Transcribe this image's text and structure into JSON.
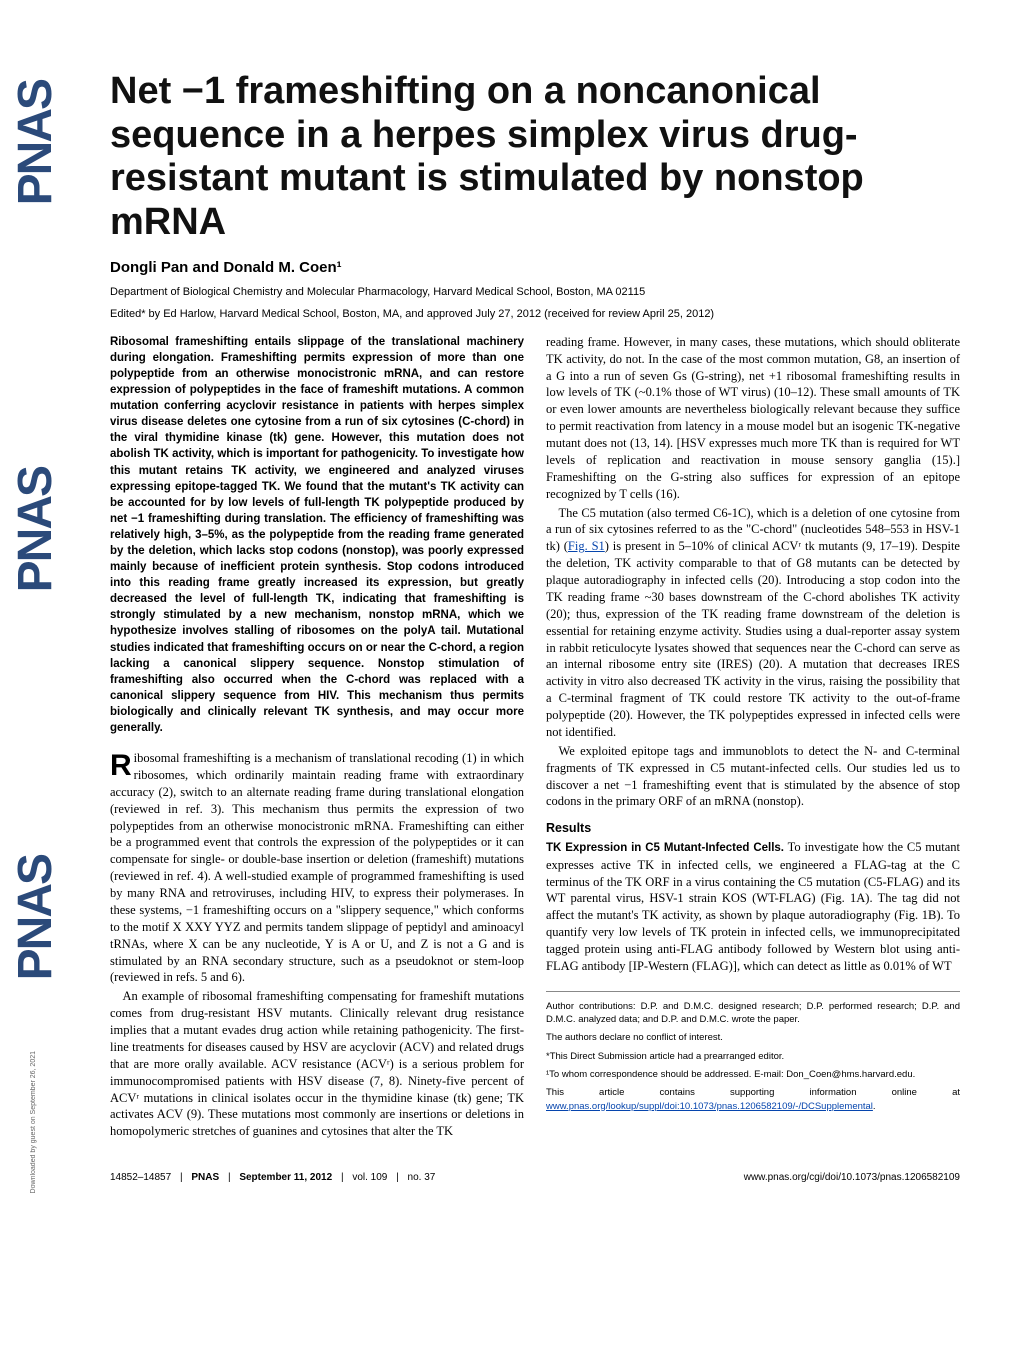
{
  "journal_logo": {
    "text": "PNAS",
    "repeat": 3,
    "color": "#2b4a7a"
  },
  "title": "Net −1 frameshifting on a noncanonical sequence in a herpes simplex virus drug-resistant mutant is stimulated by nonstop mRNA",
  "authors_html": "Dongli Pan and Donald M. Coen¹",
  "affiliation": "Department of Biological Chemistry and Molecular Pharmacology, Harvard Medical School, Boston, MA 02115",
  "editor_line": "Edited* by Ed Harlow, Harvard Medical School, Boston, MA, and approved July 27, 2012 (received for review April 25, 2012)",
  "abstract": "Ribosomal frameshifting entails slippage of the translational machinery during elongation. Frameshifting permits expression of more than one polypeptide from an otherwise monocistronic mRNA, and can restore expression of polypeptides in the face of frameshift mutations. A common mutation conferring acyclovir resistance in patients with herpes simplex virus disease deletes one cytosine from a run of six cytosines (C-chord) in the viral thymidine kinase (tk) gene. However, this mutation does not abolish TK activity, which is important for pathogenicity. To investigate how this mutant retains TK activity, we engineered and analyzed viruses expressing epitope-tagged TK. We found that the mutant's TK activity can be accounted for by low levels of full-length TK polypeptide produced by net −1 frameshifting during translation. The efficiency of frameshifting was relatively high, 3–5%, as the polypeptide from the reading frame generated by the deletion, which lacks stop codons (nonstop), was poorly expressed mainly because of inefficient protein synthesis. Stop codons introduced into this reading frame greatly increased its expression, but greatly decreased the level of full-length TK, indicating that frameshifting is strongly stimulated by a new mechanism, nonstop mRNA, which we hypothesize involves stalling of ribosomes on the polyA tail. Mutational studies indicated that frameshifting occurs on or near the C-chord, a region lacking a canonical slippery sequence. Nonstop stimulation of frameshifting also occurred when the C-chord was replaced with a canonical slippery sequence from HIV. This mechanism thus permits biologically and clinically relevant TK synthesis, and may occur more generally.",
  "body": {
    "p1": "Ribosomal frameshifting is a mechanism of translational recoding (1) in which ribosomes, which ordinarily maintain reading frame with extraordinary accuracy (2), switch to an alternate reading frame during translational elongation (reviewed in ref. 3). This mechanism thus permits the expression of two polypeptides from an otherwise monocistronic mRNA. Frameshifting can either be a programmed event that controls the expression of the polypeptides or it can compensate for single- or double-base insertion or deletion (frameshift) mutations (reviewed in ref. 4). A well-studied example of programmed frameshifting is used by many RNA and retroviruses, including HIV, to express their polymerases. In these systems, −1 frameshifting occurs on a \"slippery sequence,\" which conforms to the motif X XXY YYZ and permits tandem slippage of peptidyl and aminoacyl tRNAs, where X can be any nucleotide, Y is A or U, and Z is not a G and is stimulated by an RNA secondary structure, such as a pseudoknot or stem-loop (reviewed in refs. 5 and 6).",
    "p2": "An example of ribosomal frameshifting compensating for frameshift mutations comes from drug-resistant HSV mutants. Clinically relevant drug resistance implies that a mutant evades drug action while retaining pathogenicity. The first-line treatments for diseases caused by HSV are acyclovir (ACV) and related drugs that are more orally available. ACV resistance (ACVʳ) is a serious problem for immunocompromised patients with HSV disease (7, 8). Ninety-five percent of ACVʳ mutations in clinical isolates occur in the thymidine kinase (tk) gene; TK activates ACV (9). These mutations most commonly are insertions or deletions in homopolymeric stretches of guanines and cytosines that alter the TK",
    "p3": "reading frame. However, in many cases, these mutations, which should obliterate TK activity, do not. In the case of the most common mutation, G8, an insertion of a G into a run of seven Gs (G-string), net +1 ribosomal frameshifting results in low levels of TK (~0.1% those of WT virus) (10–12). These small amounts of TK or even lower amounts are nevertheless biologically relevant because they suffice to permit reactivation from latency in a mouse model but an isogenic TK-negative mutant does not (13, 14). [HSV expresses much more TK than is required for WT levels of replication and reactivation in mouse sensory ganglia (15).] Frameshifting on the G-string also suffices for expression of an epitope recognized by T cells (16).",
    "p4_a": "The C5 mutation (also termed C6-1C), which is a deletion of one cytosine from a run of six cytosines referred to as the \"C-chord\" (nucleotides 548–553 in HSV-1 tk) (",
    "p4_link": "Fig. S1",
    "p4_b": ") is present in 5–10% of clinical ACVʳ tk mutants (9, 17–19). Despite the deletion, TK activity comparable to that of G8 mutants can be detected by plaque autoradiography in infected cells (20). Introducing a stop codon into the TK reading frame ~30 bases downstream of the C-chord abolishes TK activity (20); thus, expression of the TK reading frame downstream of the deletion is essential for retaining enzyme activity. Studies using a dual-reporter assay system in rabbit reticulocyte lysates showed that sequences near the C-chord can serve as an internal ribosome entry site (IRES) (20). A mutation that decreases IRES activity in vitro also decreased TK activity in the virus, raising the possibility that a C-terminal fragment of TK could restore TK activity to the out-of-frame polypeptide (20). However, the TK polypeptides expressed in infected cells were not identified.",
    "p5": "We exploited epitope tags and immunoblots to detect the N- and C-terminal fragments of TK expressed in C5 mutant-infected cells. Our studies led us to discover a net −1 frameshifting event that is stimulated by the absence of stop codons in the primary ORF of an mRNA (nonstop).",
    "results_h": "Results",
    "results_runin": "TK Expression in C5 Mutant-Infected Cells.",
    "results_p": " To investigate how the C5 mutant expresses active TK in infected cells, we engineered a FLAG-tag at the C terminus of the TK ORF in a virus containing the C5 mutation (C5-FLAG) and its WT parental virus, HSV-1 strain KOS (WT-FLAG) (Fig. 1A). The tag did not affect the mutant's TK activity, as shown by plaque autoradiography (Fig. 1B). To quantify very low levels of TK protein in infected cells, we immunoprecipitated tagged protein using anti-FLAG antibody followed by Western blot using anti-FLAG antibody [IP-Western (FLAG)], which can detect as little as 0.01% of WT"
  },
  "footnotes": {
    "f1": "Author contributions: D.P. and D.M.C. designed research; D.P. performed research; D.P. and D.M.C. analyzed data; and D.P. and D.M.C. wrote the paper.",
    "f2": "The authors declare no conflict of interest.",
    "f3": "*This Direct Submission article had a prearranged editor.",
    "f4": "¹To whom correspondence should be addressed. E-mail: Don_Coen@hms.harvard.edu.",
    "f5_a": "This article contains supporting information online at ",
    "f5_link": "www.pnas.org/lookup/suppl/doi:10.1073/pnas.1206582109/-/DCSupplemental",
    "f5_b": "."
  },
  "footer": {
    "pages": "14852–14857",
    "journal": "PNAS",
    "date": "September 11, 2012",
    "vol": "vol. 109",
    "issue": "no. 37",
    "doi": "www.pnas.org/cgi/doi/10.1073/pnas.1206582109"
  },
  "download_note": "Downloaded by guest on September 26, 2021"
}
